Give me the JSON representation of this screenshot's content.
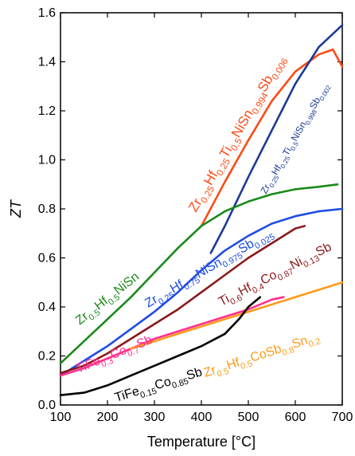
{
  "chart_data": {
    "type": "line",
    "title": "",
    "xlabel": "Temperature [°C]",
    "ylabel": "ZT",
    "xlim": [
      100,
      700
    ],
    "ylim": [
      0.0,
      1.6
    ],
    "xticks": [
      100,
      200,
      300,
      400,
      500,
      600,
      700
    ],
    "yticks": [
      0.0,
      0.2,
      0.4,
      0.6,
      0.8,
      1.0,
      1.2,
      1.4,
      1.6
    ],
    "grid": false,
    "legend": "none",
    "series": [
      {
        "name": "Zr0.25Hf0.25Ti0.5NiSn0.994Sb0.006",
        "color": "#ff4a16",
        "label_parts": [
          {
            "t": "Zr",
            "sub": false
          },
          {
            "t": "0.25",
            "sub": true
          },
          {
            "t": "Hf",
            "sub": false
          },
          {
            "t": "0.25",
            "sub": true
          },
          {
            "t": "Ti",
            "sub": false
          },
          {
            "t": "0.5",
            "sub": true
          },
          {
            "t": "NiSn",
            "sub": false
          },
          {
            "t": "0.994",
            "sub": true
          },
          {
            "t": "Sb",
            "sub": false
          },
          {
            "t": "0.006",
            "sub": true
          }
        ],
        "points": [
          [
            400,
            0.73
          ],
          [
            450,
            0.91
          ],
          [
            500,
            1.08
          ],
          [
            550,
            1.24
          ],
          [
            600,
            1.36
          ],
          [
            650,
            1.43
          ],
          [
            680,
            1.45
          ],
          [
            700,
            1.38
          ]
        ]
      },
      {
        "name": "Zr0.25Hf0.25Ti0.5NiSn0.998Sb0.002",
        "color": "#1c3a94",
        "label_parts": [
          {
            "t": "Zr",
            "sub": false
          },
          {
            "t": "0.25",
            "sub": true
          },
          {
            "t": "Hf",
            "sub": false
          },
          {
            "t": "0.25",
            "sub": true
          },
          {
            "t": "Ti",
            "sub": false
          },
          {
            "t": "0.5",
            "sub": true
          },
          {
            "t": "NiSn",
            "sub": false
          },
          {
            "t": "0.998",
            "sub": true
          },
          {
            "t": "Sb",
            "sub": false
          },
          {
            "t": "0.002",
            "sub": true
          }
        ],
        "points": [
          [
            420,
            0.62
          ],
          [
            450,
            0.73
          ],
          [
            500,
            0.93
          ],
          [
            550,
            1.12
          ],
          [
            600,
            1.31
          ],
          [
            650,
            1.46
          ],
          [
            700,
            1.55
          ]
        ]
      },
      {
        "name": "Zr0.5Hf0.5NiSn",
        "color": "#1a8a1a",
        "label_parts": [
          {
            "t": "Zr",
            "sub": false
          },
          {
            "t": "0.5",
            "sub": true
          },
          {
            "t": "Hf",
            "sub": false
          },
          {
            "t": "0.5",
            "sub": true
          },
          {
            "t": "NiSn",
            "sub": false
          }
        ],
        "points": [
          [
            100,
            0.17
          ],
          [
            150,
            0.26
          ],
          [
            200,
            0.35
          ],
          [
            250,
            0.44
          ],
          [
            300,
            0.54
          ],
          [
            350,
            0.64
          ],
          [
            400,
            0.73
          ],
          [
            450,
            0.79
          ],
          [
            500,
            0.83
          ],
          [
            550,
            0.86
          ],
          [
            600,
            0.88
          ],
          [
            650,
            0.89
          ],
          [
            690,
            0.9
          ]
        ]
      },
      {
        "name": "Zr0.25Hf0.75NiSn0.975Sb0.025",
        "color": "#1f4de3",
        "label_parts": [
          {
            "t": "Zr",
            "sub": false
          },
          {
            "t": "0.25",
            "sub": true
          },
          {
            "t": "Hf",
            "sub": false
          },
          {
            "t": "0.75",
            "sub": true
          },
          {
            "t": "NiSn",
            "sub": false
          },
          {
            "t": "0.975",
            "sub": true
          },
          {
            "t": "Sb",
            "sub": false
          },
          {
            "t": "0.025",
            "sub": true
          }
        ],
        "points": [
          [
            100,
            0.12
          ],
          [
            150,
            0.18
          ],
          [
            200,
            0.24
          ],
          [
            250,
            0.31
          ],
          [
            300,
            0.38
          ],
          [
            350,
            0.46
          ],
          [
            400,
            0.55
          ],
          [
            450,
            0.63
          ],
          [
            500,
            0.69
          ],
          [
            550,
            0.74
          ],
          [
            600,
            0.77
          ],
          [
            650,
            0.79
          ],
          [
            700,
            0.8
          ]
        ]
      },
      {
        "name": "Ti0.6Hf0.4Co0.87Ni0.13Sb",
        "color": "#8b1a1a",
        "label_parts": [
          {
            "t": "Ti",
            "sub": false
          },
          {
            "t": "0.6",
            "sub": true
          },
          {
            "t": "Hf",
            "sub": false
          },
          {
            "t": "0.4",
            "sub": true
          },
          {
            "t": "Co",
            "sub": false
          },
          {
            "t": "0.87",
            "sub": true
          },
          {
            "t": "Ni",
            "sub": false
          },
          {
            "t": "0.13",
            "sub": true
          },
          {
            "t": "Sb",
            "sub": false
          }
        ],
        "points": [
          [
            100,
            0.13
          ],
          [
            150,
            0.16
          ],
          [
            200,
            0.21
          ],
          [
            250,
            0.27
          ],
          [
            300,
            0.33
          ],
          [
            350,
            0.39
          ],
          [
            400,
            0.46
          ],
          [
            450,
            0.53
          ],
          [
            500,
            0.6
          ],
          [
            550,
            0.66
          ],
          [
            600,
            0.72
          ],
          [
            620,
            0.73
          ]
        ]
      },
      {
        "name": "TiFe0.3Co0.7Sb",
        "color": "#ff2f8e",
        "label_parts": [
          {
            "t": "TiFe",
            "sub": false
          },
          {
            "t": "0.3",
            "sub": true
          },
          {
            "t": "Co",
            "sub": false
          },
          {
            "t": "0.7",
            "sub": true
          },
          {
            "t": "Sb",
            "sub": false
          }
        ],
        "points": [
          [
            100,
            0.12
          ],
          [
            150,
            0.15
          ],
          [
            200,
            0.19
          ],
          [
            250,
            0.23
          ],
          [
            300,
            0.27
          ],
          [
            350,
            0.3
          ],
          [
            400,
            0.33
          ],
          [
            450,
            0.36
          ],
          [
            500,
            0.39
          ],
          [
            550,
            0.43
          ],
          [
            575,
            0.44
          ]
        ]
      },
      {
        "name": "Zr0.5Hf0.5CoSb0.8Sn0.2",
        "color": "#ff9a1a",
        "label_parts": [
          {
            "t": "Zr",
            "sub": false
          },
          {
            "t": "0.5",
            "sub": true
          },
          {
            "t": "Hf",
            "sub": false
          },
          {
            "t": "0.5",
            "sub": true
          },
          {
            "t": "CoSb",
            "sub": false
          },
          {
            "t": "0.8",
            "sub": true
          },
          {
            "t": "Sn",
            "sub": false
          },
          {
            "t": "0.2",
            "sub": true
          }
        ],
        "points": [
          [
            250,
            0.23
          ],
          [
            300,
            0.26
          ],
          [
            350,
            0.29
          ],
          [
            400,
            0.32
          ],
          [
            450,
            0.35
          ],
          [
            500,
            0.38
          ],
          [
            550,
            0.41
          ],
          [
            600,
            0.44
          ],
          [
            650,
            0.47
          ],
          [
            700,
            0.5
          ]
        ]
      },
      {
        "name": "TiFe0.15Co0.85Sb",
        "color": "#000000",
        "label_parts": [
          {
            "t": "TiFe",
            "sub": false
          },
          {
            "t": "0.15",
            "sub": true
          },
          {
            "t": "Co",
            "sub": false
          },
          {
            "t": "0.85",
            "sub": true
          },
          {
            "t": "Sb",
            "sub": false
          }
        ],
        "points": [
          [
            100,
            0.04
          ],
          [
            150,
            0.05
          ],
          [
            200,
            0.08
          ],
          [
            250,
            0.12
          ],
          [
            300,
            0.16
          ],
          [
            350,
            0.2
          ],
          [
            400,
            0.24
          ],
          [
            450,
            0.29
          ],
          [
            480,
            0.35
          ],
          [
            500,
            0.4
          ],
          [
            525,
            0.44
          ]
        ]
      }
    ]
  }
}
